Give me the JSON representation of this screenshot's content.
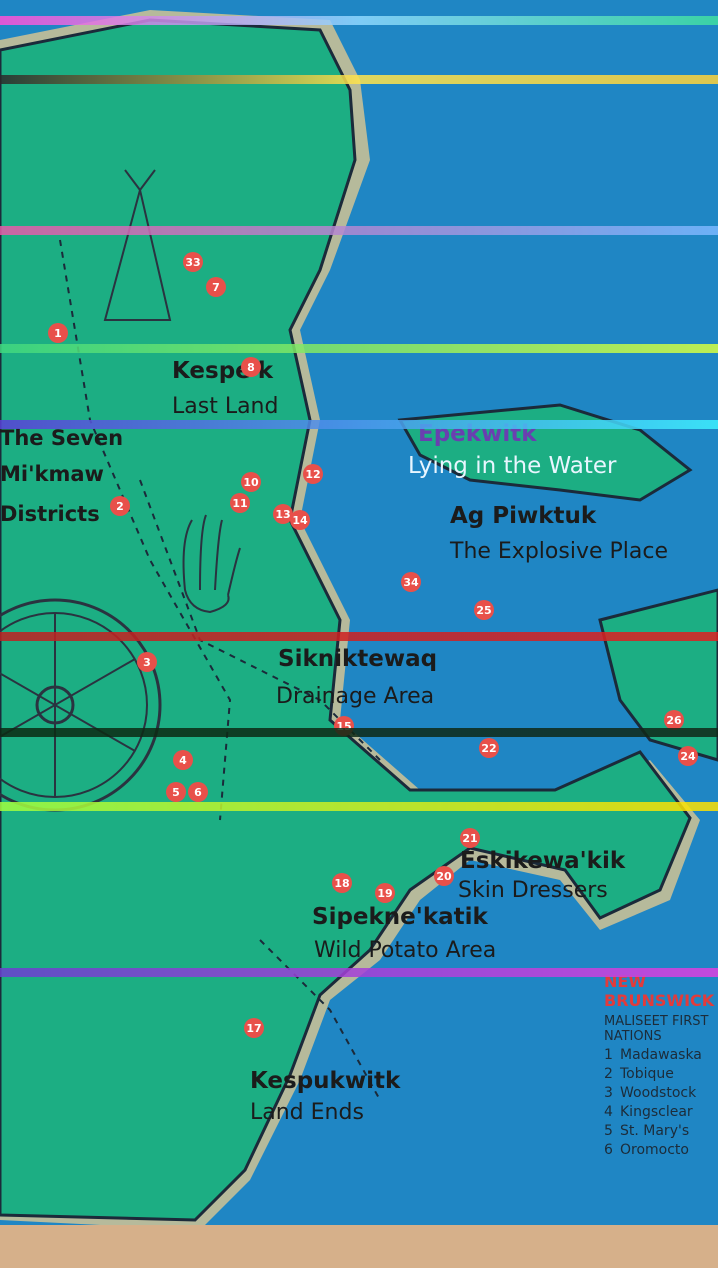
{
  "map": {
    "colors": {
      "water": "#1f86c4",
      "land": "#1cae83",
      "coast_glow": "#f6d08a",
      "border": "#1b2a3a",
      "marker": "#e8504a",
      "wall": "#d6b08a"
    },
    "regions": [
      {
        "name": "Kespe'k",
        "subtitle": "Last Land"
      },
      {
        "name": "Epekwitk",
        "subtitle": "Lying in the Water"
      },
      {
        "name": "Ag Piwktuk",
        "subtitle": "The Explosive Place"
      },
      {
        "name": "Sikniktewaq",
        "subtitle": "Drainage Area"
      },
      {
        "name": "Eskikewa'kik",
        "subtitle": "Skin Dressers"
      },
      {
        "name": "Sipekne'katik",
        "subtitle": "Wild Potato Area"
      },
      {
        "name": "Kespukwitk",
        "subtitle": "Land Ends"
      }
    ],
    "side_title": {
      "line1": "The Seven",
      "line2": "Mi'kmaw",
      "line3": "Districts"
    },
    "markers": [
      "1",
      "2",
      "3",
      "4",
      "5",
      "6",
      "7",
      "8",
      "10",
      "11",
      "12",
      "13",
      "14",
      "15",
      "17",
      "18",
      "19",
      "20",
      "21",
      "22",
      "24",
      "25",
      "26",
      "33",
      "34"
    ],
    "legend": {
      "title": "NEW BRUNSWICK",
      "heading": "MALISEET FIRST NATIONS",
      "items": [
        {
          "num": "1",
          "name": "Madawaska"
        },
        {
          "num": "2",
          "name": "Tobique"
        },
        {
          "num": "3",
          "name": "Woodstock"
        },
        {
          "num": "4",
          "name": "Kingsclear"
        },
        {
          "num": "5",
          "name": "St. Mary's"
        },
        {
          "num": "6",
          "name": "Oromocto"
        }
      ]
    }
  }
}
